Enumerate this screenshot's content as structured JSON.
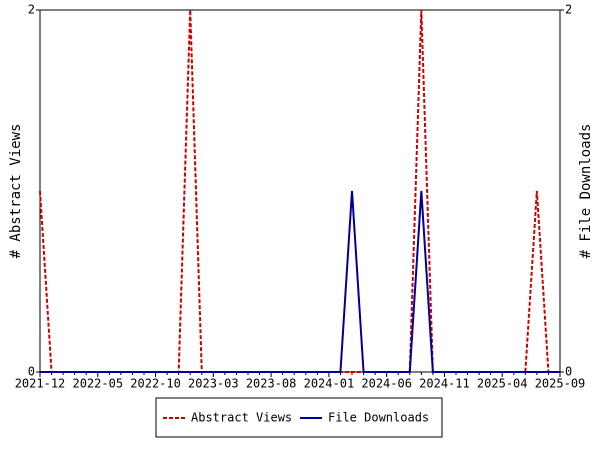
{
  "chart_data": {
    "type": "line",
    "categories": [
      "2021-12",
      null,
      null,
      null,
      null,
      "2022-05",
      null,
      null,
      null,
      null,
      "2022-10",
      null,
      null,
      null,
      null,
      "2023-03",
      null,
      null,
      null,
      null,
      "2023-08",
      null,
      null,
      null,
      null,
      "2024-01",
      null,
      null,
      null,
      null,
      "2024-06",
      null,
      null,
      null,
      null,
      "2024-11",
      null,
      null,
      null,
      null,
      "2025-04",
      null,
      null,
      null,
      null,
      "2025-09"
    ],
    "y_label": "# Abstract Views",
    "y2_label": "# File Downloads",
    "ylim": [
      0,
      2
    ],
    "yticks": [
      0,
      2
    ],
    "y2lim": [
      0,
      2
    ],
    "y2ticks": [
      0,
      2
    ],
    "legend": "bottom",
    "series": [
      {
        "name": "Abstract Views",
        "color": "#cc0000",
        "dashed": true,
        "values": [
          1,
          0,
          0,
          0,
          0,
          0,
          0,
          0,
          0,
          0,
          0,
          0,
          0,
          2,
          0,
          0,
          0,
          0,
          0,
          0,
          0,
          0,
          0,
          0,
          0,
          0,
          0,
          0,
          0,
          0,
          0,
          0,
          0,
          2,
          0,
          0,
          0,
          0,
          0,
          0,
          0,
          0,
          0,
          1,
          0,
          null
        ]
      },
      {
        "name": "File Downloads",
        "color": "#000099",
        "axis": "y2",
        "values": [
          0,
          0,
          0,
          0,
          0,
          0,
          0,
          0,
          0,
          0,
          0,
          0,
          0,
          0,
          0,
          0,
          0,
          0,
          0,
          0,
          0,
          0,
          0,
          0,
          0,
          0,
          0,
          1,
          0,
          0,
          0,
          0,
          0,
          1,
          0,
          0,
          0,
          0,
          0,
          0,
          0,
          0,
          0,
          0,
          0,
          0
        ]
      }
    ]
  }
}
